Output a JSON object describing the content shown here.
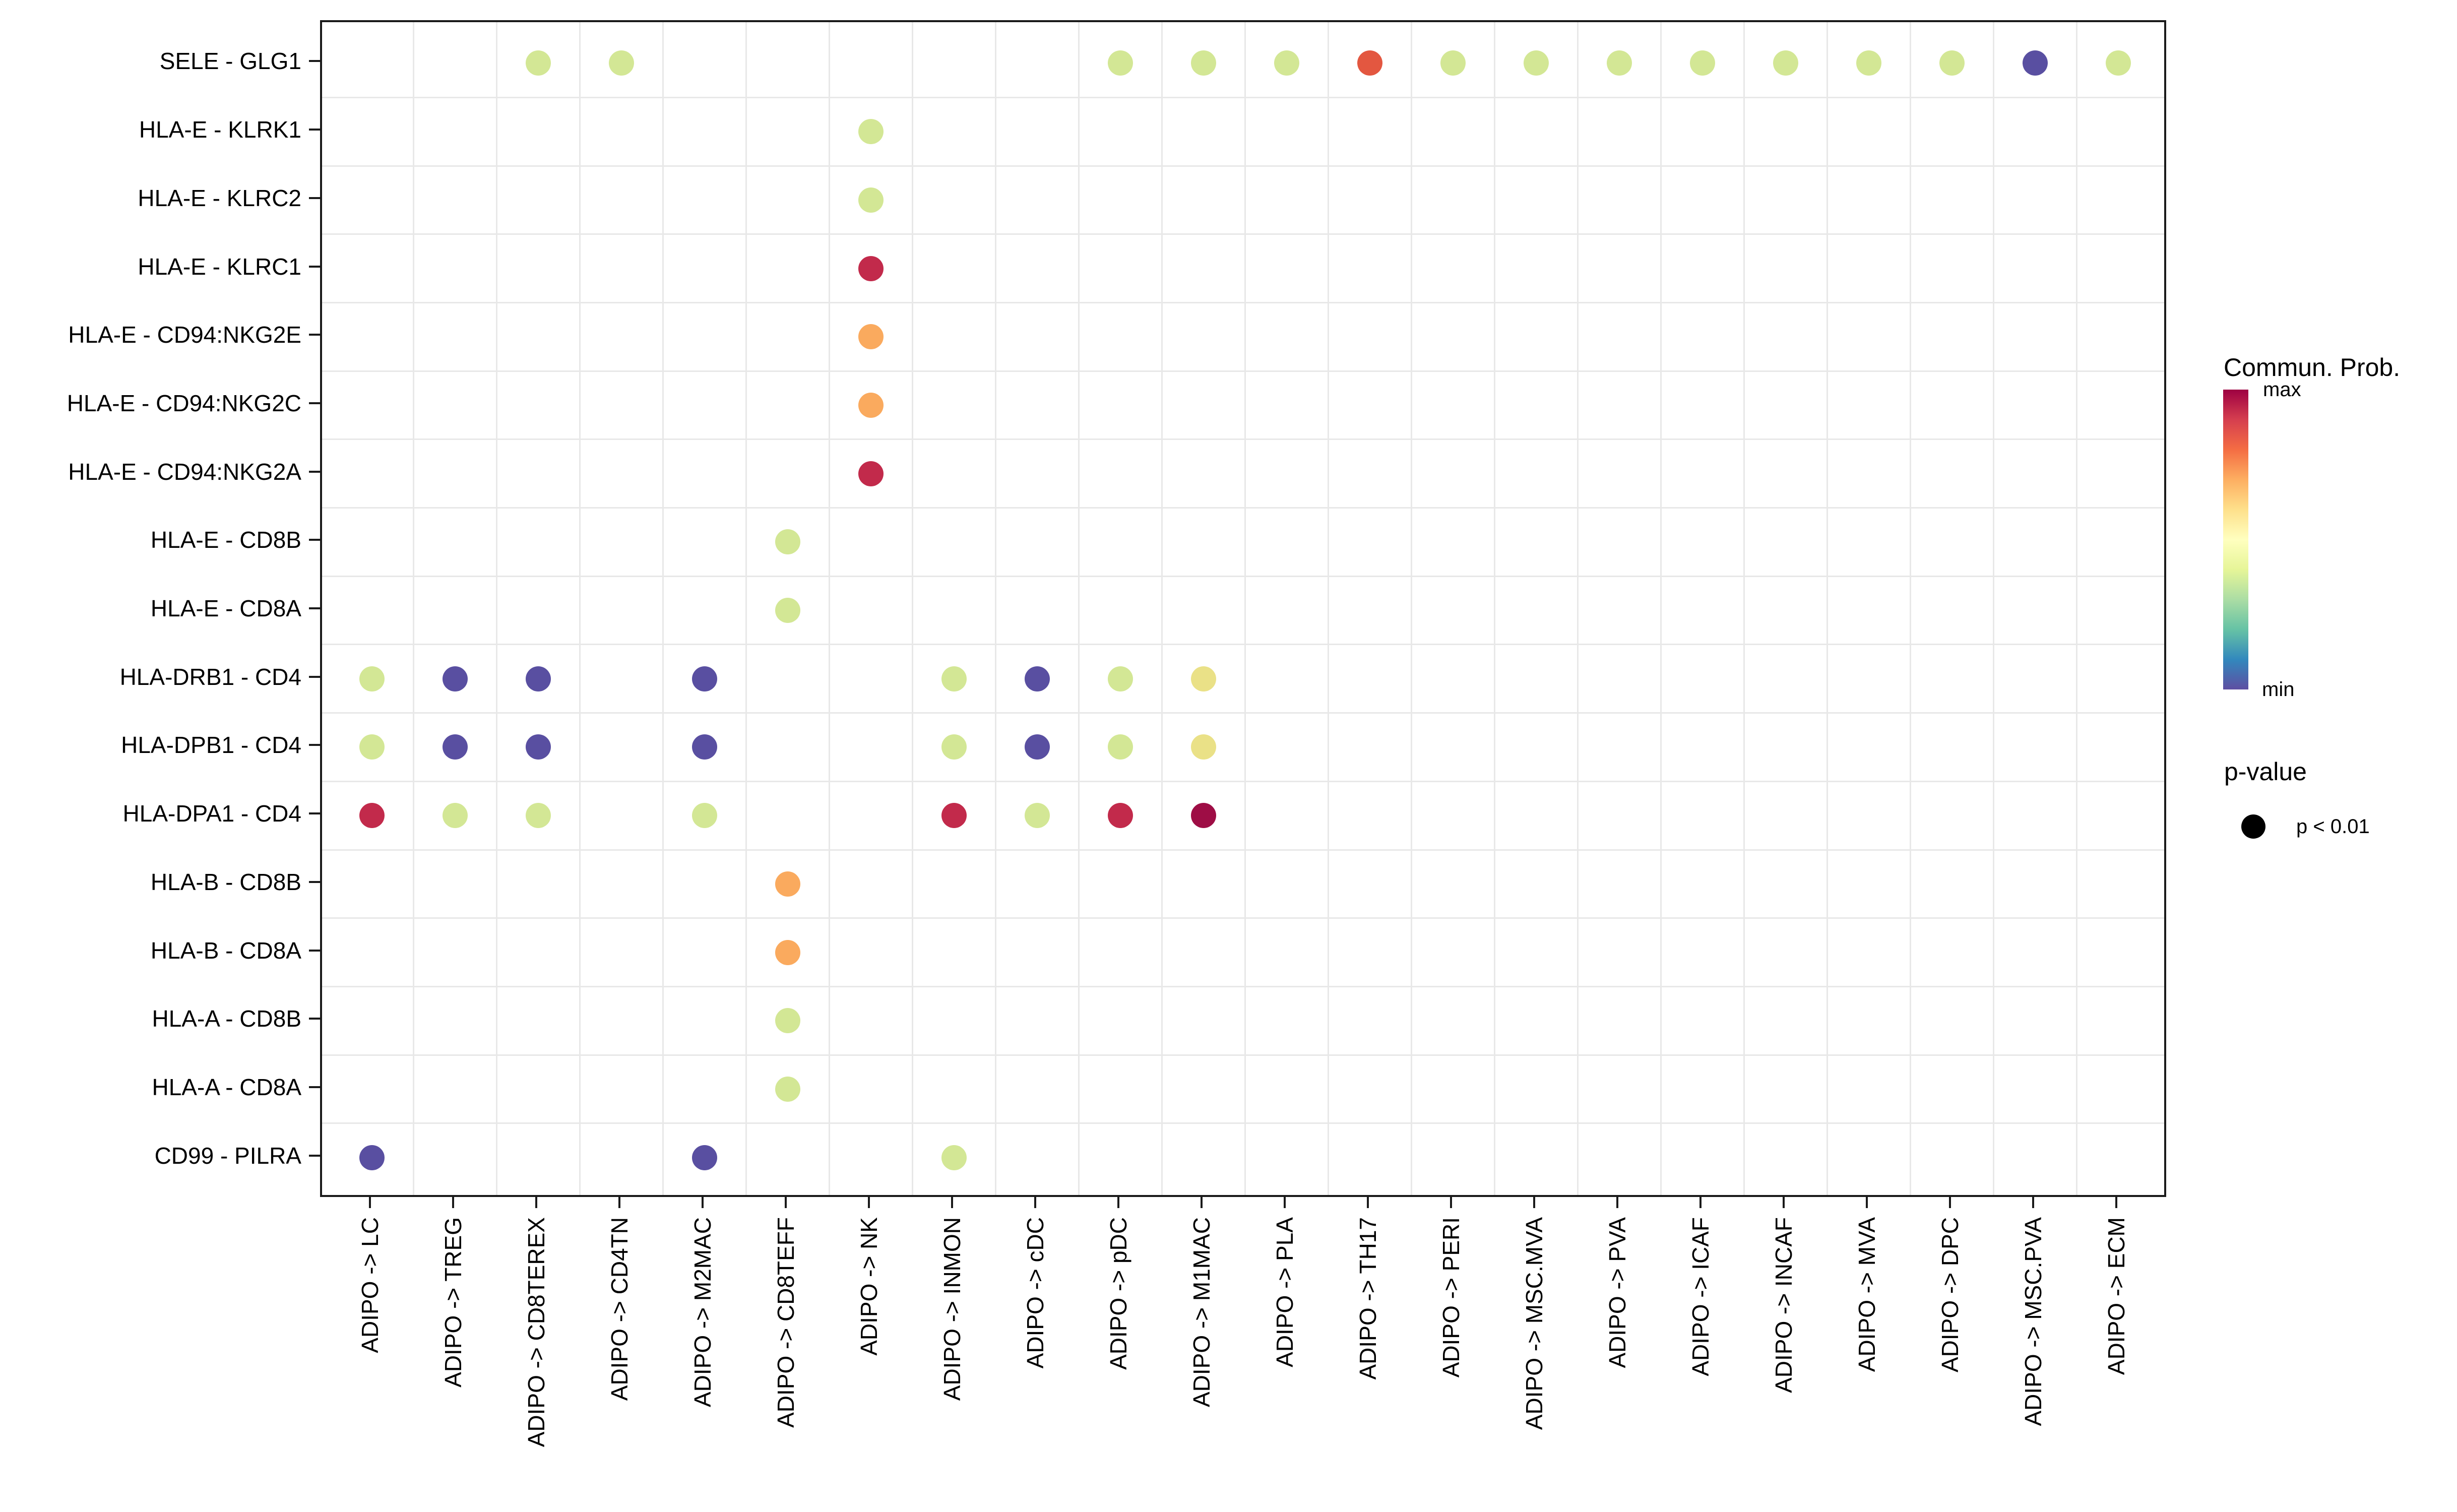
{
  "chart_data": {
    "type": "scatter",
    "subtype": "bubble-dotplot",
    "title": "",
    "xlabel": "",
    "ylabel": "",
    "grid": "on",
    "legend_position": "right",
    "rows": [
      "SELE - GLG1",
      "HLA-E - KLRK1",
      "HLA-E - KLRC2",
      "HLA-E - KLRC1",
      "HLA-E - CD94:NKG2E",
      "HLA-E - CD94:NKG2C",
      "HLA-E - CD94:NKG2A",
      "HLA-E - CD8B",
      "HLA-E - CD8A",
      "HLA-DRB1 - CD4",
      "HLA-DPB1 - CD4",
      "HLA-DPA1 - CD4",
      "HLA-B - CD8B",
      "HLA-B - CD8A",
      "HLA-A - CD8B",
      "HLA-A - CD8A",
      "CD99 - PILRA"
    ],
    "columns": [
      "ADIPO -> LC",
      "ADIPO -> TREG",
      "ADIPO -> CD8TEREX",
      "ADIPO -> CD4TN",
      "ADIPO -> M2MAC",
      "ADIPO -> CD8TEFF",
      "ADIPO -> NK",
      "ADIPO -> INMON",
      "ADIPO -> cDC",
      "ADIPO -> pDC",
      "ADIPO -> M1MAC",
      "ADIPO -> PLA",
      "ADIPO -> TH17",
      "ADIPO -> PERI",
      "ADIPO -> MSC.MVA",
      "ADIPO -> PVA",
      "ADIPO -> ICAF",
      "ADIPO -> INCAF",
      "ADIPO -> MVA",
      "ADIPO -> DPC",
      "ADIPO -> MSC.PVA",
      "ADIPO -> ECM"
    ],
    "prob_palette": {
      "min": "#594FA1",
      "low_mid": "#D3E795",
      "mid": "#EAE187",
      "mid_high": "#FAAA5E",
      "high": "#E35740",
      "very_high": "#C22A4B",
      "max": "#9E0D45"
    },
    "points": [
      {
        "r": 0,
        "c": 2,
        "v": "low_mid"
      },
      {
        "r": 0,
        "c": 3,
        "v": "low_mid"
      },
      {
        "r": 0,
        "c": 9,
        "v": "low_mid"
      },
      {
        "r": 0,
        "c": 10,
        "v": "low_mid"
      },
      {
        "r": 0,
        "c": 11,
        "v": "low_mid"
      },
      {
        "r": 0,
        "c": 12,
        "v": "high"
      },
      {
        "r": 0,
        "c": 13,
        "v": "low_mid"
      },
      {
        "r": 0,
        "c": 14,
        "v": "low_mid"
      },
      {
        "r": 0,
        "c": 15,
        "v": "low_mid"
      },
      {
        "r": 0,
        "c": 16,
        "v": "low_mid"
      },
      {
        "r": 0,
        "c": 17,
        "v": "low_mid"
      },
      {
        "r": 0,
        "c": 18,
        "v": "low_mid"
      },
      {
        "r": 0,
        "c": 19,
        "v": "low_mid"
      },
      {
        "r": 0,
        "c": 20,
        "v": "min"
      },
      {
        "r": 0,
        "c": 21,
        "v": "low_mid"
      },
      {
        "r": 1,
        "c": 6,
        "v": "low_mid"
      },
      {
        "r": 2,
        "c": 6,
        "v": "low_mid"
      },
      {
        "r": 3,
        "c": 6,
        "v": "very_high"
      },
      {
        "r": 4,
        "c": 6,
        "v": "mid_high"
      },
      {
        "r": 5,
        "c": 6,
        "v": "mid_high"
      },
      {
        "r": 6,
        "c": 6,
        "v": "very_high"
      },
      {
        "r": 7,
        "c": 5,
        "v": "low_mid"
      },
      {
        "r": 8,
        "c": 5,
        "v": "low_mid"
      },
      {
        "r": 9,
        "c": 0,
        "v": "low_mid"
      },
      {
        "r": 9,
        "c": 1,
        "v": "min"
      },
      {
        "r": 9,
        "c": 2,
        "v": "min"
      },
      {
        "r": 9,
        "c": 4,
        "v": "min"
      },
      {
        "r": 9,
        "c": 7,
        "v": "low_mid"
      },
      {
        "r": 9,
        "c": 8,
        "v": "min"
      },
      {
        "r": 9,
        "c": 9,
        "v": "low_mid"
      },
      {
        "r": 9,
        "c": 10,
        "v": "mid"
      },
      {
        "r": 10,
        "c": 0,
        "v": "low_mid"
      },
      {
        "r": 10,
        "c": 1,
        "v": "min"
      },
      {
        "r": 10,
        "c": 2,
        "v": "min"
      },
      {
        "r": 10,
        "c": 4,
        "v": "min"
      },
      {
        "r": 10,
        "c": 7,
        "v": "low_mid"
      },
      {
        "r": 10,
        "c": 8,
        "v": "min"
      },
      {
        "r": 10,
        "c": 9,
        "v": "low_mid"
      },
      {
        "r": 10,
        "c": 10,
        "v": "mid"
      },
      {
        "r": 11,
        "c": 0,
        "v": "very_high"
      },
      {
        "r": 11,
        "c": 1,
        "v": "low_mid"
      },
      {
        "r": 11,
        "c": 2,
        "v": "low_mid"
      },
      {
        "r": 11,
        "c": 4,
        "v": "low_mid"
      },
      {
        "r": 11,
        "c": 7,
        "v": "very_high"
      },
      {
        "r": 11,
        "c": 8,
        "v": "low_mid"
      },
      {
        "r": 11,
        "c": 9,
        "v": "very_high"
      },
      {
        "r": 11,
        "c": 10,
        "v": "max"
      },
      {
        "r": 12,
        "c": 5,
        "v": "mid_high"
      },
      {
        "r": 13,
        "c": 5,
        "v": "mid_high"
      },
      {
        "r": 14,
        "c": 5,
        "v": "low_mid"
      },
      {
        "r": 15,
        "c": 5,
        "v": "low_mid"
      },
      {
        "r": 16,
        "c": 0,
        "v": "min"
      },
      {
        "r": 16,
        "c": 4,
        "v": "min"
      },
      {
        "r": 16,
        "c": 7,
        "v": "low_mid"
      }
    ]
  },
  "legend": {
    "colorbar": {
      "title": "Commun. Prob.",
      "max_label": "max",
      "min_label": "min",
      "gradient_top_to_bottom": [
        "#9E0142",
        "#D53E4F",
        "#F46D43",
        "#FDAE61",
        "#FEE08B",
        "#FFFFBF",
        "#E6F598",
        "#ABDDA4",
        "#66C2A5",
        "#3288BD",
        "#5E4FA2"
      ]
    },
    "pvalue": {
      "title": "p-value",
      "dot_label": "p < 0.01",
      "dot_color": "#000000"
    }
  }
}
